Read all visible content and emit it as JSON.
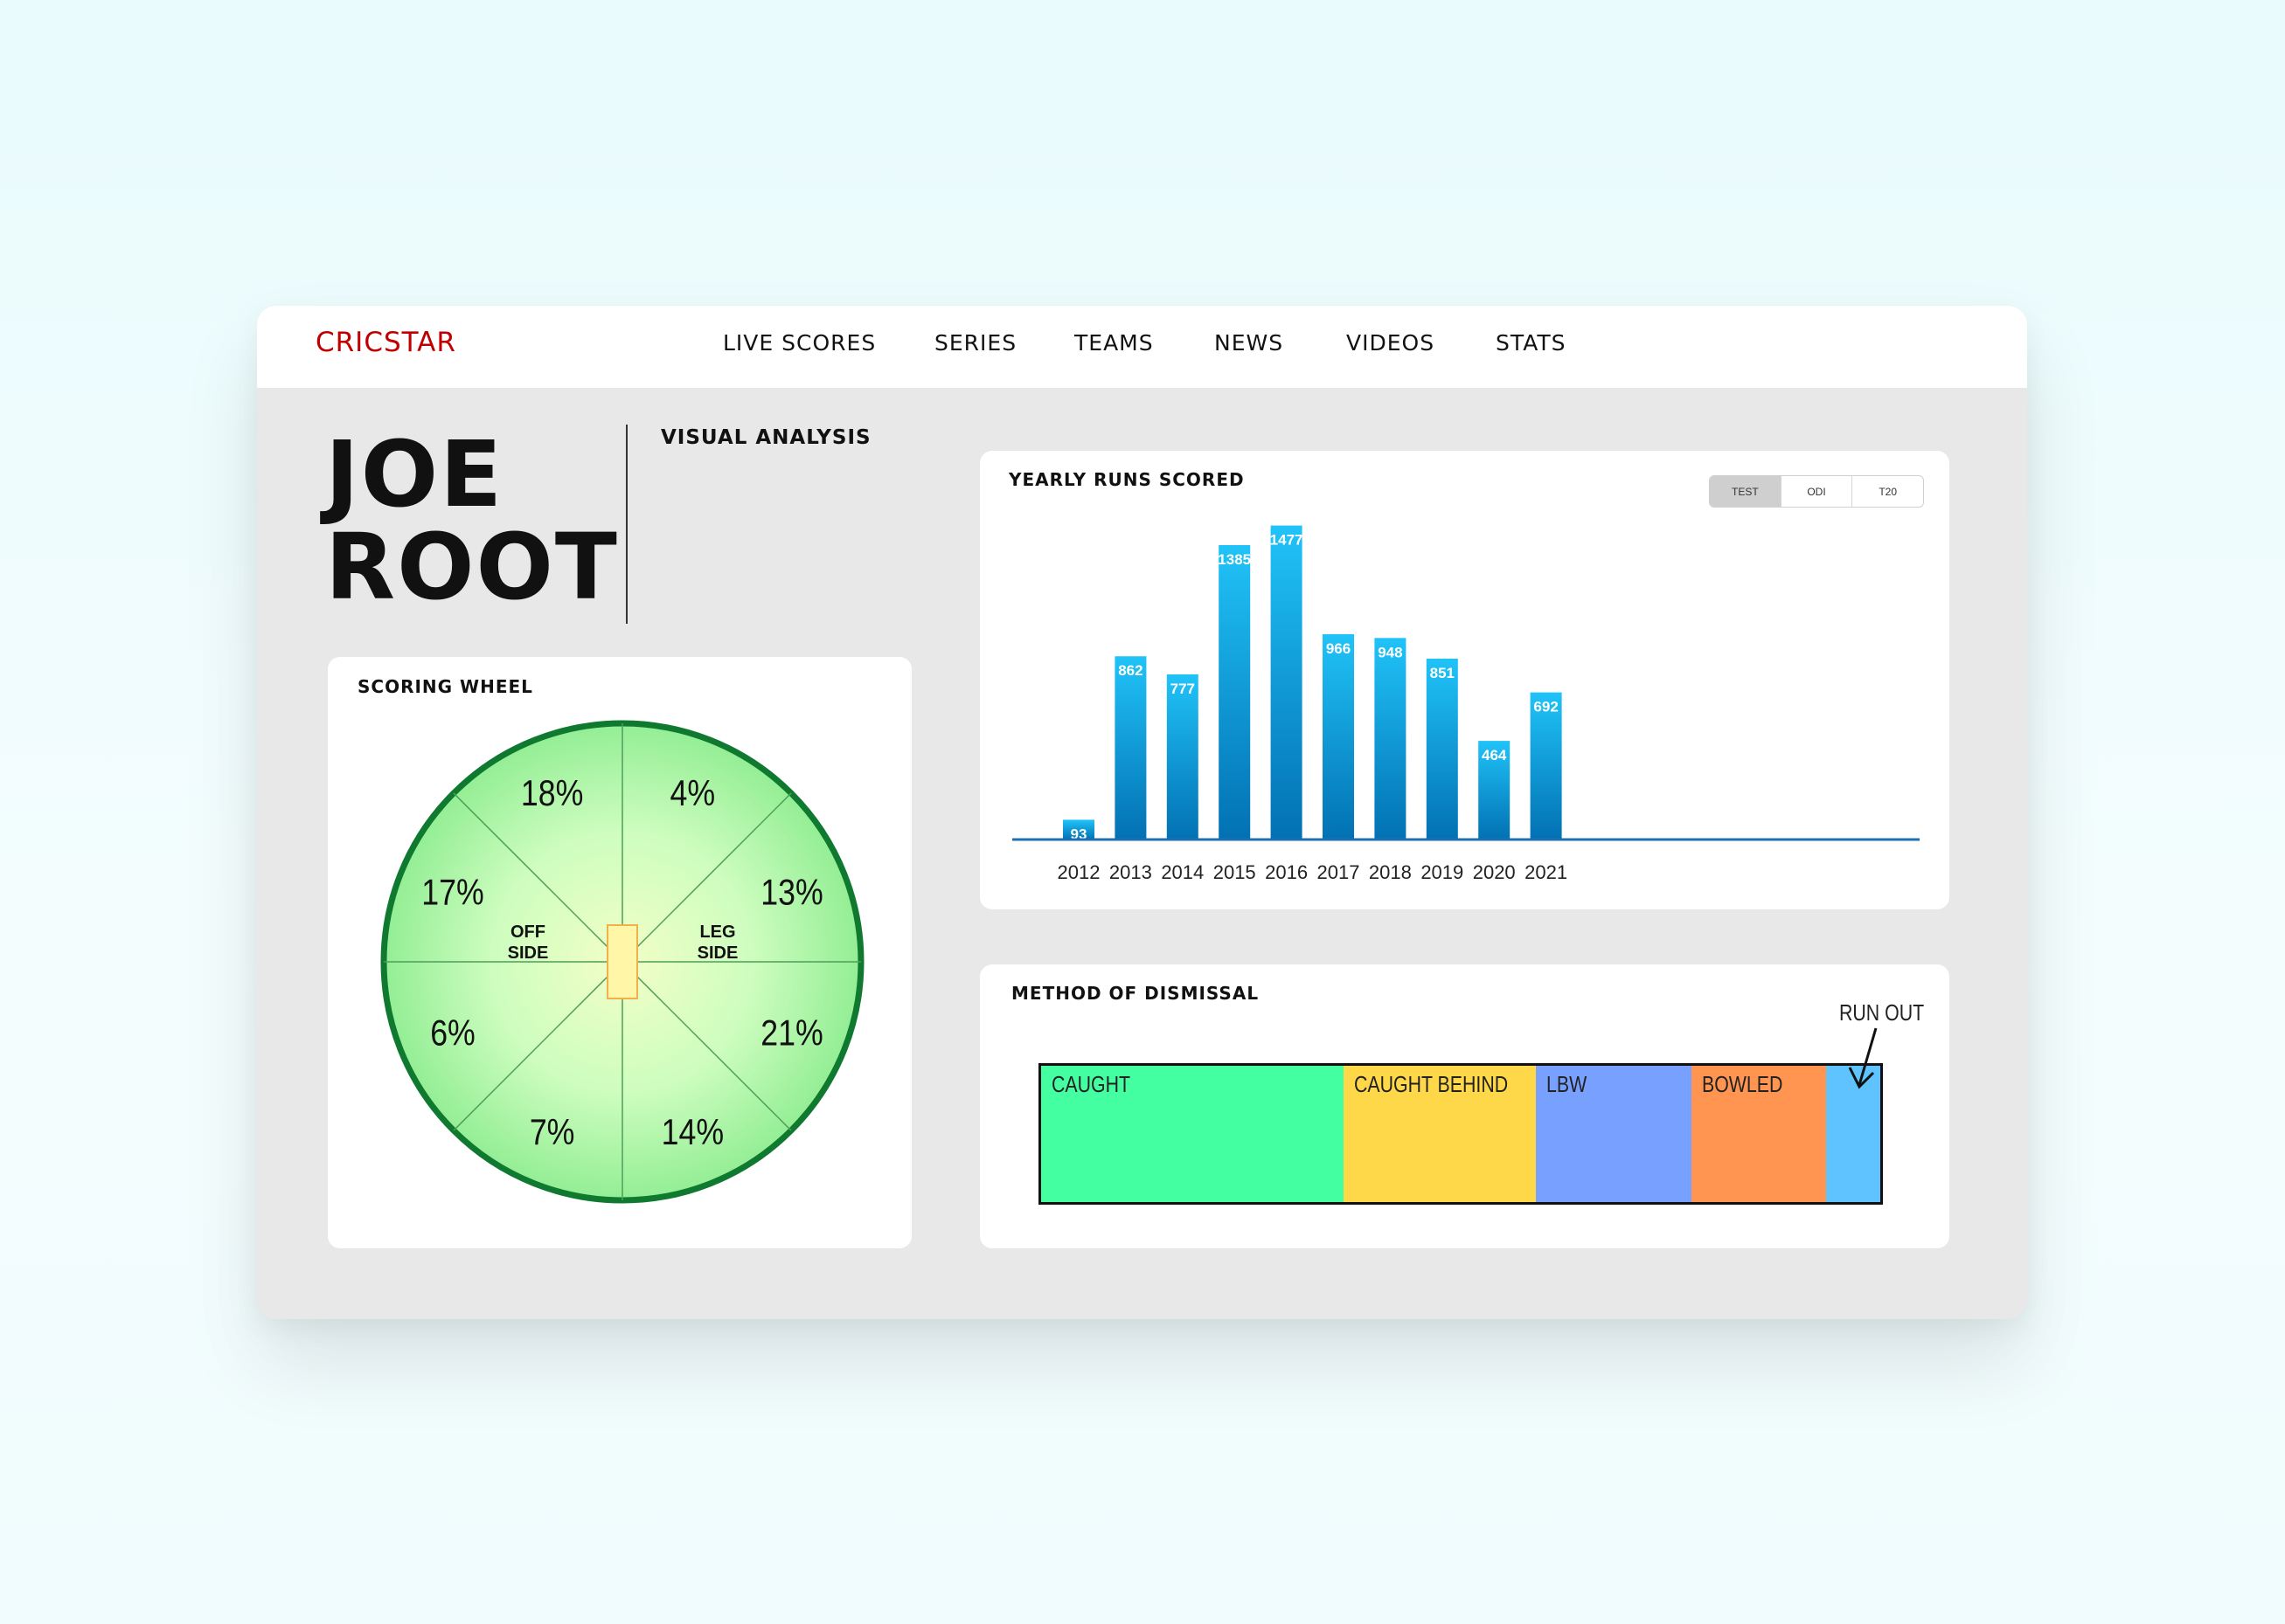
{
  "brand": {
    "logo_text": "CRICSTAR"
  },
  "nav": {
    "items": [
      {
        "label": "LIVE SCORES"
      },
      {
        "label": "SERIES"
      },
      {
        "label": "TEAMS"
      },
      {
        "label": "NEWS"
      },
      {
        "label": "VIDEOS"
      },
      {
        "label": "STATS"
      }
    ]
  },
  "player": {
    "first_name": "JOE",
    "last_name": "ROOT"
  },
  "section_label": "VISUAL ANALYSIS",
  "scoring_wheel": {
    "title": "SCORING WHEEL",
    "off_side_label": [
      "OFF",
      "SIDE"
    ],
    "leg_side_label": [
      "LEG",
      "SIDE"
    ],
    "segments": [
      {
        "label": "4%",
        "value": 4
      },
      {
        "label": "13%",
        "value": 13
      },
      {
        "label": "21%",
        "value": 21
      },
      {
        "label": "14%",
        "value": 14
      },
      {
        "label": "7%",
        "value": 7
      },
      {
        "label": "6%",
        "value": 6
      },
      {
        "label": "17%",
        "value": 17
      },
      {
        "label": "18%",
        "value": 18
      }
    ],
    "colors": {
      "outer": "#c8f7c0",
      "inner": "#eaffc0",
      "rim": "#0f7a2f",
      "pitch": "#fff6a8"
    }
  },
  "yearly_runs": {
    "title": "YEARLY RUNS SCORED",
    "format_toggle": [
      {
        "label": "TEST",
        "active": true
      },
      {
        "label": "ODI",
        "active": false
      },
      {
        "label": "T20",
        "active": false
      }
    ]
  },
  "dismissal": {
    "title": "METHOD OF DISMISSAL",
    "segments": [
      {
        "label": "CAUGHT",
        "share": 0.36,
        "color": "#44ffa2"
      },
      {
        "label": "CAUGHT BEHIND",
        "share": 0.23,
        "color": "#ffd84a"
      },
      {
        "label": "LBW",
        "share": 0.185,
        "color": "#78a0ff"
      },
      {
        "label": "BOWLED",
        "share": 0.16,
        "color": "#ff9550"
      },
      {
        "label": "",
        "share": 0.065,
        "color": "#5ec3ff"
      }
    ],
    "run_out_label": "RUN OUT"
  },
  "chart_data": {
    "type": "bar",
    "title": "YEARLY RUNS SCORED",
    "categories": [
      "2012",
      "2013",
      "2014",
      "2015",
      "2016",
      "2017",
      "2018",
      "2019",
      "2020",
      "2021"
    ],
    "values": [
      93,
      862,
      777,
      1385,
      1477,
      966,
      948,
      851,
      464,
      692
    ],
    "xlabel": "",
    "ylabel": "",
    "ylim": [
      0,
      1500
    ],
    "grid": false,
    "colors": {
      "bar_top": "#20c3f8",
      "bar_bottom": "#0271b3",
      "axis": "#1d6fb0"
    }
  }
}
